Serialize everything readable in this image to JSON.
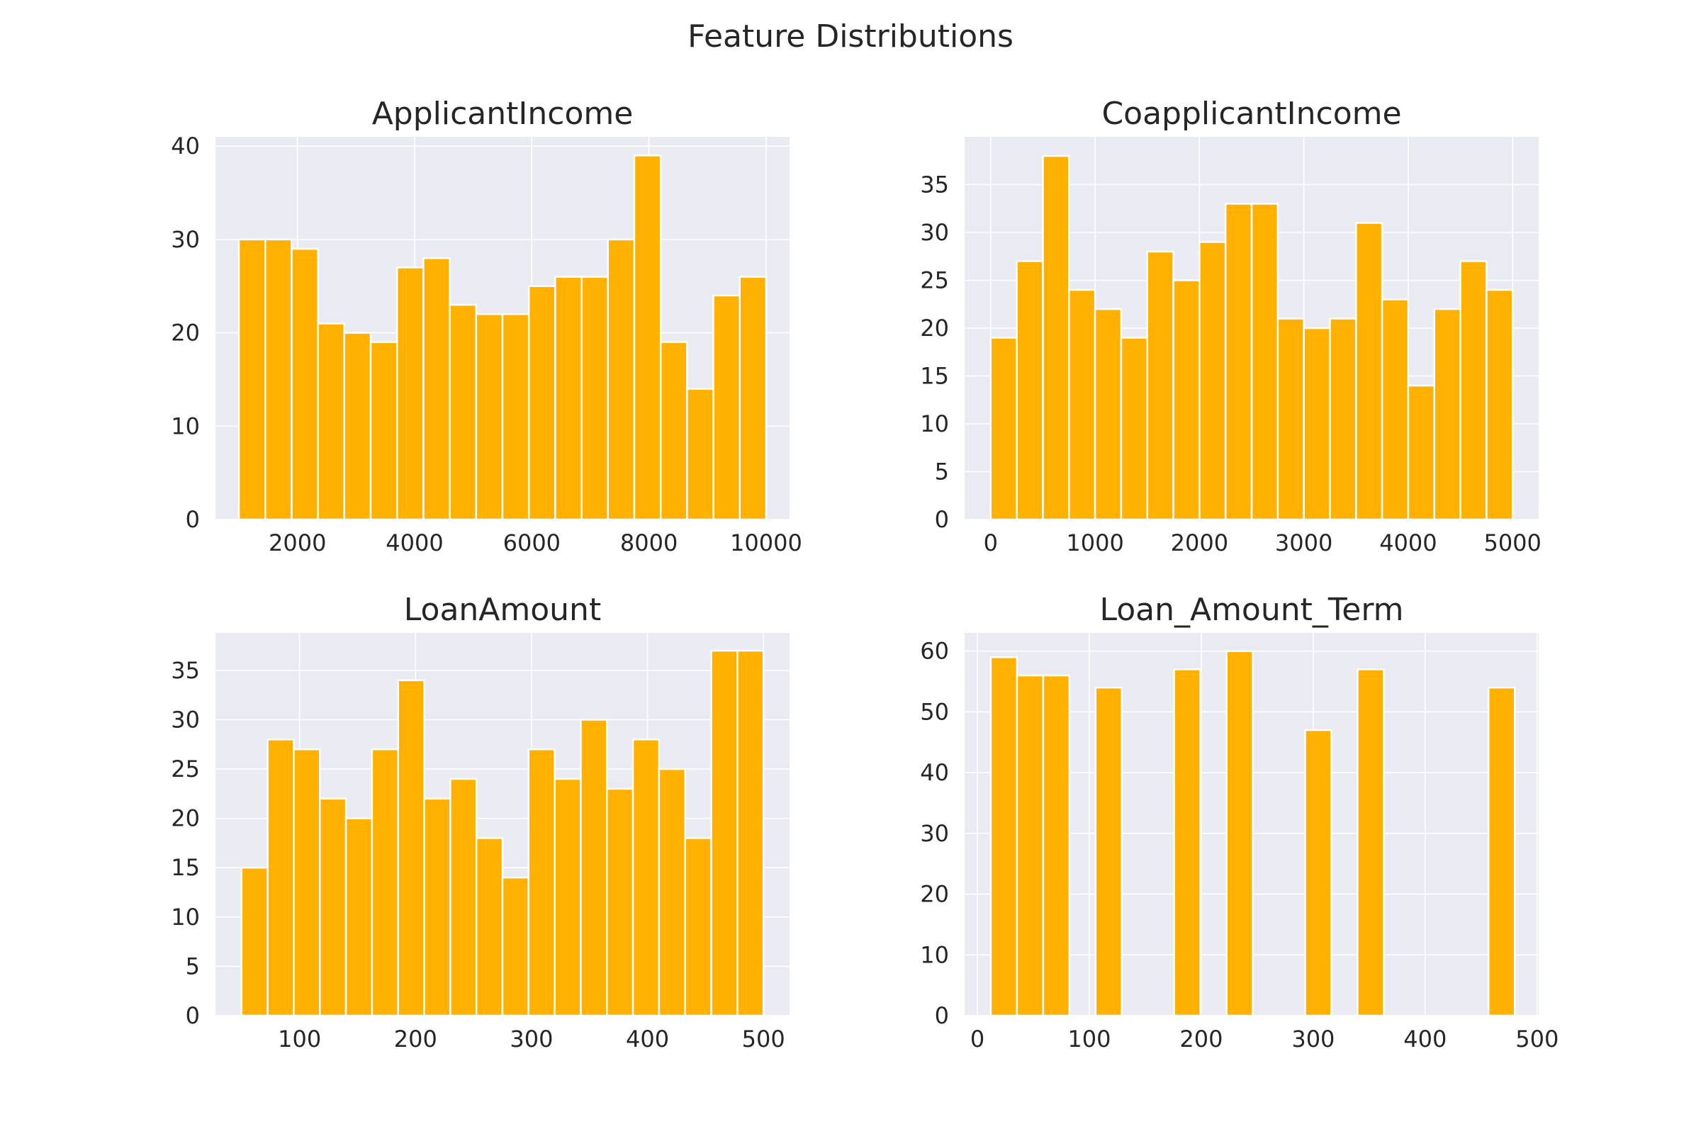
{
  "figure": {
    "title": "Feature Distributions"
  },
  "chart_data": [
    {
      "type": "bar",
      "title": "ApplicantIncome",
      "xlim": [
        600,
        10400
      ],
      "ylim": [
        0,
        41
      ],
      "xticks": [
        2000,
        4000,
        6000,
        8000,
        10000
      ],
      "yticks": [
        0,
        10,
        20,
        30,
        40
      ],
      "grid": true,
      "color": "#ffb000",
      "bins": [
        {
          "x0": 1000,
          "x1": 1450,
          "count": 30
        },
        {
          "x0": 1450,
          "x1": 1900,
          "count": 30
        },
        {
          "x0": 1900,
          "x1": 2350,
          "count": 29
        },
        {
          "x0": 2350,
          "x1": 2800,
          "count": 21
        },
        {
          "x0": 2800,
          "x1": 3250,
          "count": 20
        },
        {
          "x0": 3250,
          "x1": 3700,
          "count": 19
        },
        {
          "x0": 3700,
          "x1": 4150,
          "count": 27
        },
        {
          "x0": 4150,
          "x1": 4600,
          "count": 28
        },
        {
          "x0": 4600,
          "x1": 5050,
          "count": 23
        },
        {
          "x0": 5050,
          "x1": 5500,
          "count": 22
        },
        {
          "x0": 5500,
          "x1": 5950,
          "count": 22
        },
        {
          "x0": 5950,
          "x1": 6400,
          "count": 25
        },
        {
          "x0": 6400,
          "x1": 6850,
          "count": 26
        },
        {
          "x0": 6850,
          "x1": 7300,
          "count": 26
        },
        {
          "x0": 7300,
          "x1": 7750,
          "count": 30
        },
        {
          "x0": 7750,
          "x1": 8200,
          "count": 39
        },
        {
          "x0": 8200,
          "x1": 8650,
          "count": 19
        },
        {
          "x0": 8650,
          "x1": 9100,
          "count": 14
        },
        {
          "x0": 9100,
          "x1": 9550,
          "count": 24
        },
        {
          "x0": 9550,
          "x1": 10000,
          "count": 26
        }
      ]
    },
    {
      "type": "bar",
      "title": "CoapplicantIncome",
      "xlim": [
        -250,
        5250
      ],
      "ylim": [
        0,
        40
      ],
      "xticks": [
        0,
        1000,
        2000,
        3000,
        4000,
        5000
      ],
      "yticks": [
        0,
        5,
        10,
        15,
        20,
        25,
        30,
        35
      ],
      "grid": true,
      "color": "#ffb000",
      "bins": [
        {
          "x0": 0,
          "x1": 250,
          "count": 19
        },
        {
          "x0": 250,
          "x1": 500,
          "count": 27
        },
        {
          "x0": 500,
          "x1": 750,
          "count": 38
        },
        {
          "x0": 750,
          "x1": 1000,
          "count": 24
        },
        {
          "x0": 1000,
          "x1": 1250,
          "count": 22
        },
        {
          "x0": 1250,
          "x1": 1500,
          "count": 19
        },
        {
          "x0": 1500,
          "x1": 1750,
          "count": 28
        },
        {
          "x0": 1750,
          "x1": 2000,
          "count": 25
        },
        {
          "x0": 2000,
          "x1": 2250,
          "count": 29
        },
        {
          "x0": 2250,
          "x1": 2500,
          "count": 33
        },
        {
          "x0": 2500,
          "x1": 2750,
          "count": 33
        },
        {
          "x0": 2750,
          "x1": 3000,
          "count": 21
        },
        {
          "x0": 3000,
          "x1": 3250,
          "count": 20
        },
        {
          "x0": 3250,
          "x1": 3500,
          "count": 21
        },
        {
          "x0": 3500,
          "x1": 3750,
          "count": 31
        },
        {
          "x0": 3750,
          "x1": 4000,
          "count": 23
        },
        {
          "x0": 4000,
          "x1": 4250,
          "count": 14
        },
        {
          "x0": 4250,
          "x1": 4500,
          "count": 22
        },
        {
          "x0": 4500,
          "x1": 4750,
          "count": 27
        },
        {
          "x0": 4750,
          "x1": 5000,
          "count": 24
        }
      ]
    },
    {
      "type": "bar",
      "title": "LoanAmount",
      "xlim": [
        27.5,
        522.5
      ],
      "ylim": [
        0,
        38.8
      ],
      "xticks": [
        100,
        200,
        300,
        400,
        500
      ],
      "yticks": [
        0,
        5,
        10,
        15,
        20,
        25,
        30,
        35
      ],
      "grid": true,
      "color": "#ffb000",
      "bins": [
        {
          "x0": 50,
          "x1": 72.5,
          "count": 15
        },
        {
          "x0": 72.5,
          "x1": 95,
          "count": 28
        },
        {
          "x0": 95,
          "x1": 117.5,
          "count": 27
        },
        {
          "x0": 117.5,
          "x1": 140,
          "count": 22
        },
        {
          "x0": 140,
          "x1": 162.5,
          "count": 20
        },
        {
          "x0": 162.5,
          "x1": 185,
          "count": 27
        },
        {
          "x0": 185,
          "x1": 207.5,
          "count": 34
        },
        {
          "x0": 207.5,
          "x1": 230,
          "count": 22
        },
        {
          "x0": 230,
          "x1": 252.5,
          "count": 24
        },
        {
          "x0": 252.5,
          "x1": 275,
          "count": 18
        },
        {
          "x0": 275,
          "x1": 297.5,
          "count": 14
        },
        {
          "x0": 297.5,
          "x1": 320,
          "count": 27
        },
        {
          "x0": 320,
          "x1": 342.5,
          "count": 24
        },
        {
          "x0": 342.5,
          "x1": 365,
          "count": 30
        },
        {
          "x0": 365,
          "x1": 387.5,
          "count": 23
        },
        {
          "x0": 387.5,
          "x1": 410,
          "count": 28
        },
        {
          "x0": 410,
          "x1": 432.5,
          "count": 25
        },
        {
          "x0": 432.5,
          "x1": 455,
          "count": 18
        },
        {
          "x0": 455,
          "x1": 477.5,
          "count": 37
        },
        {
          "x0": 477.5,
          "x1": 500,
          "count": 37
        }
      ]
    },
    {
      "type": "bar",
      "title": "Loan_Amount_Term",
      "xlim": [
        -11.4,
        501.4
      ],
      "ylim": [
        0,
        63
      ],
      "xticks": [
        0,
        100,
        200,
        300,
        400,
        500
      ],
      "yticks": [
        0,
        10,
        20,
        30,
        40,
        50,
        60
      ],
      "grid": true,
      "color": "#ffb000",
      "bins": [
        {
          "x0": 12,
          "x1": 35.4,
          "count": 59
        },
        {
          "x0": 35.4,
          "x1": 58.8,
          "count": 56
        },
        {
          "x0": 58.8,
          "x1": 82.2,
          "count": 56
        },
        {
          "x0": 105.6,
          "x1": 129,
          "count": 54
        },
        {
          "x0": 175.8,
          "x1": 199.2,
          "count": 57
        },
        {
          "x0": 222.6,
          "x1": 246,
          "count": 60
        },
        {
          "x0": 292.8,
          "x1": 316.2,
          "count": 47
        },
        {
          "x0": 339.6,
          "x1": 363,
          "count": 57
        },
        {
          "x0": 456.6,
          "x1": 480,
          "count": 54
        }
      ]
    }
  ]
}
